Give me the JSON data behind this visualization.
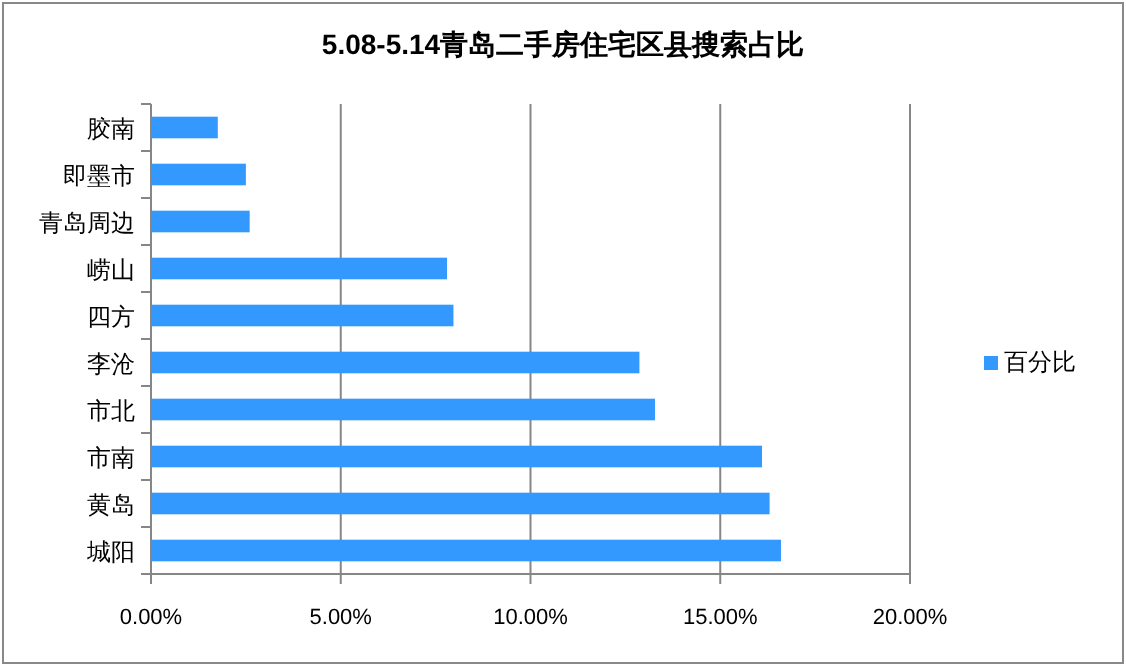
{
  "chart_data": {
    "type": "bar",
    "orientation": "horizontal",
    "title": "5.08-5.14青岛二手房住宅区县搜索占比",
    "categories": [
      "胶南",
      "即墨市",
      "青岛周边",
      "崂山",
      "四方",
      "李沧",
      "市北",
      "市南",
      "黄岛",
      "城阳"
    ],
    "series": [
      {
        "name": "百分比",
        "color": "#3399ff",
        "values": [
          1.76,
          2.5,
          2.6,
          7.8,
          7.97,
          12.87,
          13.28,
          16.1,
          16.3,
          16.6
        ]
      }
    ],
    "xlim": [
      0,
      20
    ],
    "xticks": [
      {
        "value": 0,
        "label": "0.00%"
      },
      {
        "value": 5,
        "label": "5.00%"
      },
      {
        "value": 10,
        "label": "10.00%"
      },
      {
        "value": 15,
        "label": "15.00%"
      },
      {
        "value": 20,
        "label": "20.00%"
      }
    ],
    "grid": "x",
    "legend": "right"
  }
}
